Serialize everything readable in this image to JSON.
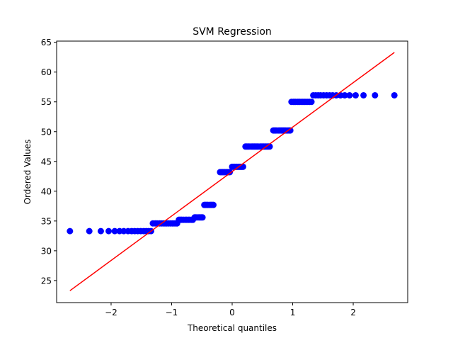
{
  "chart_data": {
    "type": "scatter",
    "title": "SVM Regression",
    "xlabel": "Theoretical quantiles",
    "ylabel": "Ordered Values",
    "xlim": [
      -2.9,
      2.9
    ],
    "ylim": [
      21.3,
      65.2
    ],
    "xticks": [
      -2,
      -1,
      0,
      1,
      2
    ],
    "yticks": [
      25,
      30,
      35,
      40,
      45,
      50,
      55,
      60,
      65
    ],
    "grid": false,
    "legend": "none",
    "point_color": "#0000ff",
    "line_color": "#ff0000",
    "fit_line": {
      "x": [
        -2.68,
        2.68
      ],
      "y": [
        23.3,
        63.3
      ]
    },
    "points": {
      "x": [
        -2.68,
        -2.36,
        -2.17,
        -2.04,
        -1.94,
        -1.86,
        -1.79,
        -1.72,
        -1.66,
        -1.61,
        -1.56,
        -1.51,
        -1.46,
        -1.42,
        -1.38,
        -1.34,
        -1.31,
        -1.27,
        -1.24,
        -1.2,
        -1.17,
        -1.14,
        -1.11,
        -1.08,
        -1.05,
        -1.02,
        -0.99,
        -0.96,
        -0.93,
        -0.91,
        -0.88,
        -0.85,
        -0.83,
        -0.8,
        -0.77,
        -0.75,
        -0.72,
        -0.7,
        -0.67,
        -0.65,
        -0.62,
        -0.6,
        -0.58,
        -0.55,
        -0.53,
        -0.51,
        -0.49,
        -0.46,
        -0.44,
        -0.42,
        -0.4,
        -0.37,
        -0.35,
        -0.33,
        -0.31,
        -0.2,
        -0.18,
        -0.16,
        -0.14,
        -0.12,
        -0.1,
        -0.08,
        -0.06,
        -0.04,
        0.0,
        0.02,
        0.04,
        0.06,
        0.08,
        0.1,
        0.12,
        0.14,
        0.16,
        0.18,
        0.22,
        0.24,
        0.26,
        0.28,
        0.31,
        0.33,
        0.35,
        0.37,
        0.39,
        0.41,
        0.43,
        0.46,
        0.48,
        0.5,
        0.52,
        0.54,
        0.56,
        0.58,
        0.6,
        0.62,
        0.68,
        0.7,
        0.72,
        0.74,
        0.77,
        0.79,
        0.81,
        0.83,
        0.85,
        0.87,
        0.89,
        0.92,
        0.94,
        0.96,
        0.98,
        1.01,
        1.03,
        1.05,
        1.08,
        1.1,
        1.12,
        1.15,
        1.17,
        1.2,
        1.22,
        1.25,
        1.28,
        1.31,
        1.34,
        1.38,
        1.42,
        1.46,
        1.51,
        1.56,
        1.61,
        1.66,
        1.72,
        1.79,
        1.86,
        1.94,
        2.04,
        2.17,
        2.36,
        2.68
      ],
      "y": [
        33.3,
        33.3,
        33.3,
        33.3,
        33.3,
        33.3,
        33.3,
        33.3,
        33.3,
        33.3,
        33.3,
        33.3,
        33.3,
        33.3,
        33.3,
        33.3,
        34.6,
        34.6,
        34.6,
        34.6,
        34.6,
        34.6,
        34.6,
        34.6,
        34.6,
        34.6,
        34.6,
        34.6,
        34.6,
        34.6,
        35.2,
        35.2,
        35.2,
        35.2,
        35.2,
        35.2,
        35.2,
        35.2,
        35.2,
        35.2,
        35.6,
        35.6,
        35.6,
        35.6,
        35.6,
        35.6,
        35.6,
        37.7,
        37.7,
        37.7,
        37.7,
        37.7,
        37.7,
        37.7,
        37.7,
        43.2,
        43.2,
        43.2,
        43.2,
        43.2,
        43.2,
        43.2,
        43.2,
        43.2,
        44.1,
        44.1,
        44.1,
        44.1,
        44.1,
        44.1,
        44.1,
        44.1,
        44.1,
        44.1,
        47.5,
        47.5,
        47.5,
        47.5,
        47.5,
        47.5,
        47.5,
        47.5,
        47.5,
        47.5,
        47.5,
        47.5,
        47.5,
        47.5,
        47.5,
        47.5,
        47.5,
        47.5,
        47.5,
        47.5,
        50.2,
        50.2,
        50.2,
        50.2,
        50.2,
        50.2,
        50.2,
        50.2,
        50.2,
        50.2,
        50.2,
        50.2,
        50.2,
        50.2,
        55.0,
        55.0,
        55.0,
        55.0,
        55.0,
        55.0,
        55.0,
        55.0,
        55.0,
        55.0,
        55.0,
        55.0,
        55.0,
        55.0,
        56.1,
        56.1,
        56.1,
        56.1,
        56.1,
        56.1,
        56.1,
        56.1,
        56.1,
        56.1,
        56.1,
        56.1,
        56.1,
        56.1,
        56.1,
        56.1
      ]
    }
  }
}
